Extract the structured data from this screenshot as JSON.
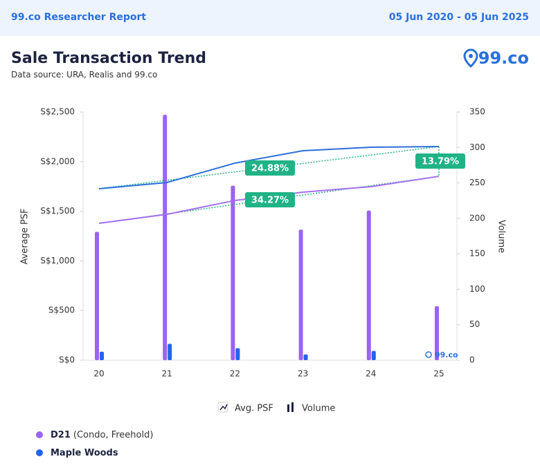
{
  "header": {
    "title": "99.co Researcher Report",
    "date_range": "05 Jun 2020 - 05 Jun 2025"
  },
  "title": "Sale Transaction Trend",
  "source": "Data source: URA, Realis and 99.co",
  "brand": "99.co",
  "chart_data": {
    "type": "combo",
    "categories": [
      "20",
      "21",
      "22",
      "23",
      "24",
      "25"
    ],
    "ylabel": "Average PSF",
    "y2label": "Volume",
    "ylim": [
      0,
      2500
    ],
    "yticks": [
      {
        "value": 0,
        "label": "S$0"
      },
      {
        "value": 500,
        "label": "S$500"
      },
      {
        "value": 1000,
        "label": "S$1,000"
      },
      {
        "value": 1500,
        "label": "S$1,500"
      },
      {
        "value": 2000,
        "label": "S$2,000"
      },
      {
        "value": 2500,
        "label": "S$2,500"
      }
    ],
    "y2lim": [
      0,
      350
    ],
    "y2ticks": [
      0,
      50,
      100,
      150,
      200,
      250,
      300,
      350
    ],
    "chart_legend": [
      "Avg. PSF",
      "Volume"
    ],
    "series": [
      {
        "name": "D21",
        "detail": "(Condo, Freehold)",
        "color": "#9b63f2",
        "line_color": "#a46ff0",
        "psf": [
          1379,
          1469,
          1609,
          1692,
          1748,
          1852
        ],
        "volume": [
          181,
          346,
          246,
          184,
          211,
          76
        ]
      },
      {
        "name": "Maple Woods",
        "color": "#2563eb",
        "line_color": "#2a6fdb",
        "psf": [
          1727,
          1790,
          1985,
          2110,
          2145,
          2152
        ],
        "volume": [
          12,
          23,
          17,
          8,
          13,
          null
        ]
      }
    ],
    "trend_color": "#1fb386",
    "annotations": [
      "24.88%",
      "34.27%",
      "13.79%"
    ]
  }
}
